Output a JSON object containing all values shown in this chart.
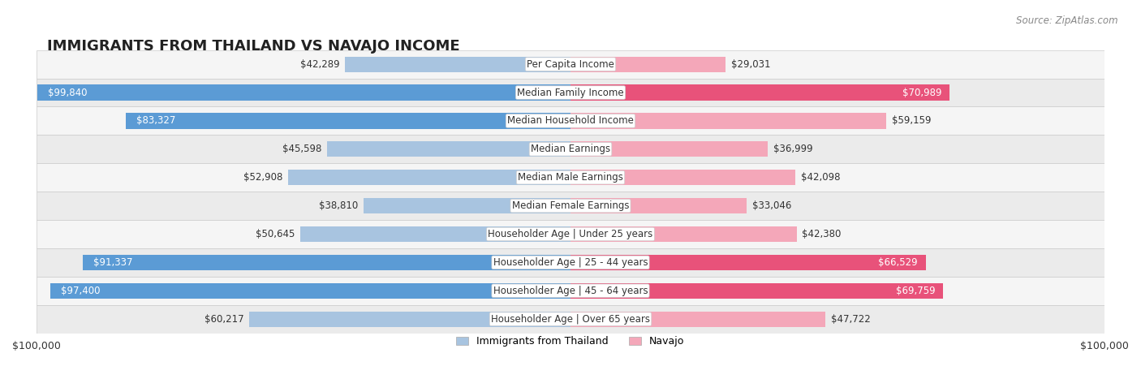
{
  "title": "IMMIGRANTS FROM THAILAND VS NAVAJO INCOME",
  "source": "Source: ZipAtlas.com",
  "categories": [
    "Per Capita Income",
    "Median Family Income",
    "Median Household Income",
    "Median Earnings",
    "Median Male Earnings",
    "Median Female Earnings",
    "Householder Age | Under 25 years",
    "Householder Age | 25 - 44 years",
    "Householder Age | 45 - 64 years",
    "Householder Age | Over 65 years"
  ],
  "thailand_values": [
    42289,
    99840,
    83327,
    45598,
    52908,
    38810,
    50645,
    91337,
    97400,
    60217
  ],
  "navajo_values": [
    29031,
    70989,
    59159,
    36999,
    42098,
    33046,
    42380,
    66529,
    69759,
    47722
  ],
  "thailand_labels": [
    "$42,289",
    "$99,840",
    "$83,327",
    "$45,598",
    "$52,908",
    "$38,810",
    "$50,645",
    "$91,337",
    "$97,400",
    "$60,217"
  ],
  "navajo_labels": [
    "$29,031",
    "$70,989",
    "$59,159",
    "$36,999",
    "$42,098",
    "$33,046",
    "$42,380",
    "$66,529",
    "$69,759",
    "$47,722"
  ],
  "max_value": 100000,
  "thailand_color_light": "#a8c4e0",
  "thailand_color_dark": "#5b9bd5",
  "navajo_color_light": "#f4a7b9",
  "navajo_color_dark": "#e8527a",
  "bar_height": 0.55,
  "bg_row_color": "#f0f0f0",
  "bg_alt_row_color": "#e8e8e8",
  "row_bg": "#efefef",
  "label_fontsize": 8.5,
  "category_fontsize": 8.5,
  "title_fontsize": 13
}
